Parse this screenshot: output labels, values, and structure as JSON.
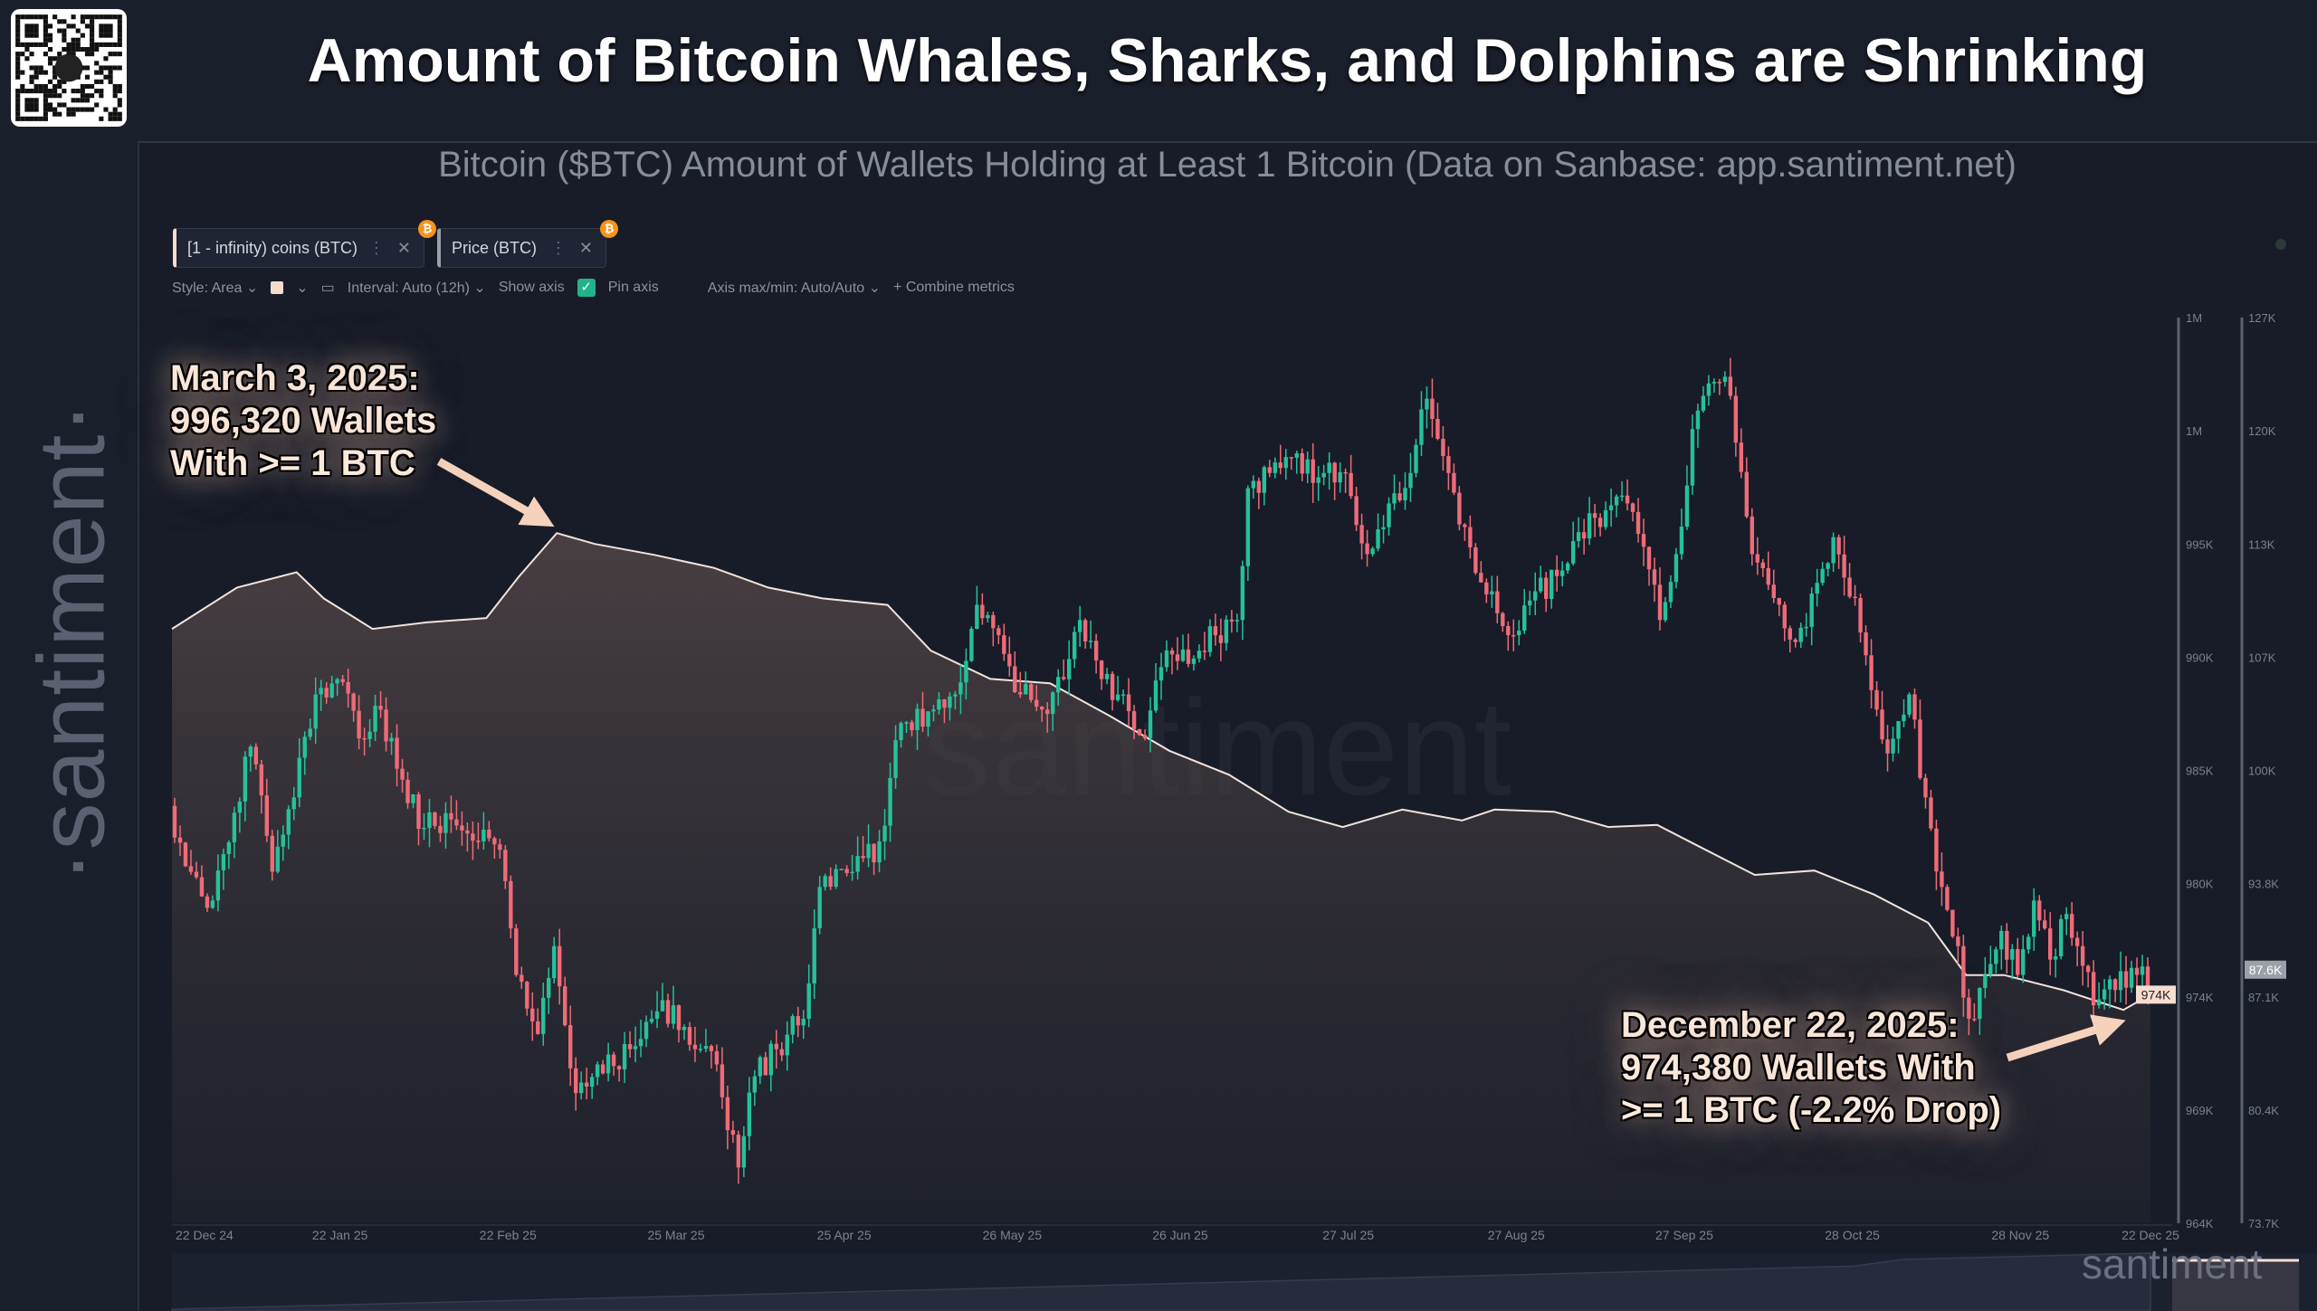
{
  "header": {
    "title": "Amount of Bitcoin Whales, Sharks, and Dolphins are Shrinking",
    "subtitle": "Bitcoin ($BTC) Amount of Wallets Holding at Least 1 Bitcoin (Data on Sanbase: app.santiment.net)"
  },
  "sidebar": {
    "logo": "·santiment·",
    "qr_icon": "qr-code-icon"
  },
  "tabs": [
    {
      "label": "[1 - infinity) coins (BTC)",
      "badge": "₿"
    },
    {
      "label": "Price (BTC)",
      "badge": "₿"
    }
  ],
  "toolbar": {
    "style": "Style: Area",
    "interval": "Interval: Auto (12h)",
    "show_axis": "Show axis",
    "show_axis_checked": true,
    "pin_axis": "Pin axis",
    "axis_maxmin": "Axis max/min: Auto/Auto",
    "combine": "Combine metrics"
  },
  "annotations": {
    "peak": [
      "March 3, 2025:",
      "996,320 Wallets",
      "With >= 1 BTC"
    ],
    "latest": [
      "December 22, 2025:",
      "974,380 Wallets With",
      ">= 1 BTC (-2.2% Drop)"
    ]
  },
  "watermark": "santiment",
  "footer_logo": "santiment",
  "colors": {
    "wallets_area": "#f6dccd",
    "candle_up": "#26c19a",
    "candle_down": "#ef6b78",
    "background": "#171c28"
  },
  "chart_data": {
    "type": "area+candlestick",
    "x_range": [
      "2024-12-22",
      "2025-12-22"
    ],
    "x_ticks": [
      "22 Dec 24",
      "22 Jan 25",
      "22 Feb 25",
      "25 Mar 25",
      "25 Apr 25",
      "26 May 25",
      "26 Jun 25",
      "27 Jul 25",
      "27 Aug 25",
      "27 Sep 25",
      "28 Oct 25",
      "28 Nov 25",
      "22 Dec 25"
    ],
    "x_tick_dates": [
      "2024-12-22",
      "2025-01-22",
      "2025-02-22",
      "2025-03-25",
      "2025-04-25",
      "2025-05-26",
      "2025-06-26",
      "2025-07-27",
      "2025-08-27",
      "2025-09-27",
      "2025-10-28",
      "2025-11-28",
      "2025-12-22"
    ],
    "grid": false,
    "left_axis": {
      "ticks": [
        "1M",
        "1M",
        "995K",
        "990K",
        "985K",
        "980K",
        "974K",
        "969K",
        "964K"
      ],
      "ylim": [
        963.9,
        1005.5
      ],
      "unit": "K wallets",
      "current_label": "974K"
    },
    "right_axis": {
      "ticks": [
        "127K",
        "120K",
        "113K",
        "107K",
        "100K",
        "93.8K",
        "87.1K",
        "80.4K",
        "73.7K"
      ],
      "ylim": [
        73.7,
        127.3
      ],
      "unit": "K USD",
      "current_label": "87.6K"
    },
    "series": [
      {
        "name": "[1 - infinity) coins (BTC)",
        "type": "area",
        "axis": "left",
        "points": [
          [
            "2024-12-22",
            991.2
          ],
          [
            "2025-01-03",
            993.1
          ],
          [
            "2025-01-14",
            993.8
          ],
          [
            "2025-01-19",
            992.6
          ],
          [
            "2025-01-28",
            991.2
          ],
          [
            "2025-02-07",
            991.5
          ],
          [
            "2025-02-18",
            991.7
          ],
          [
            "2025-02-24",
            993.6
          ],
          [
            "2025-03-03",
            995.6
          ],
          [
            "2025-03-10",
            995.1
          ],
          [
            "2025-03-21",
            994.6
          ],
          [
            "2025-04-01",
            994.0
          ],
          [
            "2025-04-11",
            993.1
          ],
          [
            "2025-04-21",
            992.6
          ],
          [
            "2025-05-03",
            992.3
          ],
          [
            "2025-05-11",
            990.2
          ],
          [
            "2025-05-22",
            988.9
          ],
          [
            "2025-06-02",
            988.7
          ],
          [
            "2025-06-13",
            987.2
          ],
          [
            "2025-06-24",
            985.6
          ],
          [
            "2025-07-05",
            984.5
          ],
          [
            "2025-07-16",
            982.8
          ],
          [
            "2025-07-26",
            982.1
          ],
          [
            "2025-08-06",
            982.9
          ],
          [
            "2025-08-17",
            982.4
          ],
          [
            "2025-08-23",
            982.9
          ],
          [
            "2025-09-03",
            982.8
          ],
          [
            "2025-09-13",
            982.1
          ],
          [
            "2025-09-22",
            982.2
          ],
          [
            "2025-09-29",
            981.3
          ],
          [
            "2025-10-10",
            979.9
          ],
          [
            "2025-10-21",
            980.1
          ],
          [
            "2025-11-01",
            979.0
          ],
          [
            "2025-11-11",
            977.7
          ],
          [
            "2025-11-18",
            975.3
          ],
          [
            "2025-11-25",
            975.3
          ],
          [
            "2025-12-06",
            974.6
          ],
          [
            "2025-12-17",
            973.7
          ],
          [
            "2025-12-22",
            974.4
          ]
        ]
      },
      {
        "name": "Price (BTC)",
        "type": "candlestick",
        "axis": "right",
        "points": [
          [
            "2024-12-22",
            98.4
          ],
          [
            "2024-12-26",
            94.5
          ],
          [
            "2024-12-30",
            92.8
          ],
          [
            "2025-01-03",
            98.0
          ],
          [
            "2025-01-06",
            101.9
          ],
          [
            "2025-01-10",
            94.5
          ],
          [
            "2025-01-14",
            98.9
          ],
          [
            "2025-01-18",
            105.0
          ],
          [
            "2025-01-22",
            105.9
          ],
          [
            "2025-01-26",
            102.4
          ],
          [
            "2025-01-30",
            104.1
          ],
          [
            "2025-02-02",
            100.6
          ],
          [
            "2025-02-07",
            97.1
          ],
          [
            "2025-02-12",
            97.6
          ],
          [
            "2025-02-17",
            96.3
          ],
          [
            "2025-02-21",
            95.8
          ],
          [
            "2025-02-24",
            88.4
          ],
          [
            "2025-02-28",
            84.9
          ],
          [
            "2025-03-03",
            90.1
          ],
          [
            "2025-03-07",
            81.4
          ],
          [
            "2025-03-11",
            83.1
          ],
          [
            "2025-03-17",
            84.0
          ],
          [
            "2025-03-21",
            85.8
          ],
          [
            "2025-03-25",
            86.6
          ],
          [
            "2025-03-29",
            84.0
          ],
          [
            "2025-04-02",
            83.1
          ],
          [
            "2025-04-06",
            77.0
          ],
          [
            "2025-04-09",
            82.4
          ],
          [
            "2025-04-13",
            84.0
          ],
          [
            "2025-04-18",
            85.8
          ],
          [
            "2025-04-21",
            93.6
          ],
          [
            "2025-04-27",
            94.5
          ],
          [
            "2025-05-02",
            96.3
          ],
          [
            "2025-05-06",
            103.3
          ],
          [
            "2025-05-12",
            104.1
          ],
          [
            "2025-05-16",
            105.0
          ],
          [
            "2025-05-20",
            110.3
          ],
          [
            "2025-05-24",
            108.5
          ],
          [
            "2025-05-28",
            105.0
          ],
          [
            "2025-06-01",
            104.1
          ],
          [
            "2025-06-05",
            105.9
          ],
          [
            "2025-06-08",
            109.4
          ],
          [
            "2025-06-12",
            105.9
          ],
          [
            "2025-06-16",
            105.0
          ],
          [
            "2025-06-20",
            102.4
          ],
          [
            "2025-06-24",
            107.6
          ],
          [
            "2025-06-28",
            106.8
          ],
          [
            "2025-07-03",
            108.5
          ],
          [
            "2025-07-07",
            109.4
          ],
          [
            "2025-07-09",
            117.2
          ],
          [
            "2025-07-13",
            118.1
          ],
          [
            "2025-07-17",
            119.0
          ],
          [
            "2025-07-23",
            118.1
          ],
          [
            "2025-07-27",
            118.1
          ],
          [
            "2025-07-31",
            113.3
          ],
          [
            "2025-08-04",
            116.3
          ],
          [
            "2025-08-08",
            118.1
          ],
          [
            "2025-08-11",
            122.5
          ],
          [
            "2025-08-15",
            118.1
          ],
          [
            "2025-08-19",
            113.7
          ],
          [
            "2025-08-23",
            111.1
          ],
          [
            "2025-08-27",
            108.5
          ],
          [
            "2025-08-31",
            111.1
          ],
          [
            "2025-09-04",
            112.0
          ],
          [
            "2025-09-08",
            114.6
          ],
          [
            "2025-09-13",
            115.9
          ],
          [
            "2025-09-17",
            116.3
          ],
          [
            "2025-09-21",
            112.4
          ],
          [
            "2025-09-23",
            109.4
          ],
          [
            "2025-09-26",
            113.3
          ],
          [
            "2025-09-29",
            120.7
          ],
          [
            "2025-10-02",
            123.4
          ],
          [
            "2025-10-05",
            123.8
          ],
          [
            "2025-10-07",
            119.9
          ],
          [
            "2025-10-10",
            113.3
          ],
          [
            "2025-10-14",
            110.7
          ],
          [
            "2025-10-18",
            108.1
          ],
          [
            "2025-10-22",
            111.6
          ],
          [
            "2025-10-25",
            114.3
          ],
          [
            "2025-10-29",
            110.7
          ],
          [
            "2025-11-02",
            104.1
          ],
          [
            "2025-11-04",
            101.5
          ],
          [
            "2025-11-08",
            105.0
          ],
          [
            "2025-11-11",
            98.9
          ],
          [
            "2025-11-14",
            93.6
          ],
          [
            "2025-11-17",
            90.1
          ],
          [
            "2025-11-19",
            85.8
          ],
          [
            "2025-11-22",
            88.4
          ],
          [
            "2025-11-25",
            91.0
          ],
          [
            "2025-11-28",
            88.4
          ],
          [
            "2025-12-01",
            92.8
          ],
          [
            "2025-12-04",
            89.3
          ],
          [
            "2025-12-07",
            92.0
          ],
          [
            "2025-12-09",
            90.1
          ],
          [
            "2025-12-12",
            86.6
          ],
          [
            "2025-12-16",
            87.5
          ],
          [
            "2025-12-20",
            88.4
          ],
          [
            "2025-12-22",
            87.6
          ]
        ]
      }
    ]
  }
}
